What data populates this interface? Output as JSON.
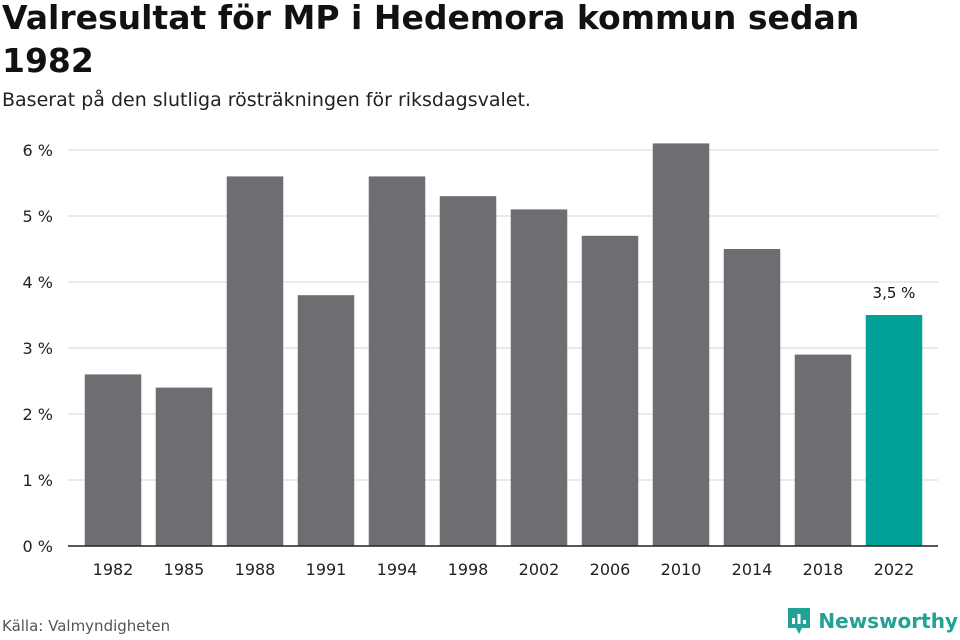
{
  "chart_data": {
    "type": "bar",
    "title": "Valresultat för MP i Hedemora kommun sedan 1982",
    "subtitle": "Baserat på den slutliga rösträkningen för riksdagsvalet.",
    "categories": [
      "1982",
      "1985",
      "1988",
      "1991",
      "1994",
      "1998",
      "2002",
      "2006",
      "2010",
      "2014",
      "2018",
      "2022"
    ],
    "values": [
      2.6,
      2.4,
      5.6,
      3.8,
      5.6,
      5.3,
      5.1,
      4.7,
      6.1,
      4.5,
      2.9,
      3.5
    ],
    "ylim": [
      0,
      6
    ],
    "yticks": [
      0,
      1,
      2,
      3,
      4,
      5,
      6
    ],
    "ytick_labels": [
      "0 %",
      "1 %",
      "2 %",
      "3 %",
      "4 %",
      "5 %",
      "6 %"
    ],
    "highlight_index": 11,
    "highlight_label": "3,5 %",
    "xlabel": "",
    "ylabel": "",
    "grid": true,
    "colors": {
      "bar": "#6e6d72",
      "highlight": "#00a196",
      "grid": "#dddddd",
      "axis": "#222222"
    }
  },
  "footer": {
    "source": "Källa: Valmyndigheten",
    "brand": "Newsworthy"
  }
}
